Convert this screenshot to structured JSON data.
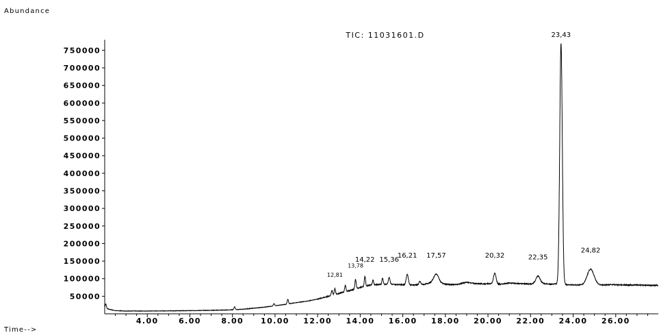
{
  "chart_data": {
    "type": "line",
    "title": "TIC: 11031601.D",
    "ylabel": "Abundance",
    "xlabel": "Time-->",
    "xlim": [
      2.0,
      28.0
    ],
    "ylim": [
      0,
      780000
    ],
    "x_ticks": [
      {
        "value": 4,
        "label": "4.00"
      },
      {
        "value": 6,
        "label": "6.00"
      },
      {
        "value": 8,
        "label": "8.00"
      },
      {
        "value": 10,
        "label": "10.00"
      },
      {
        "value": 12,
        "label": "12.00"
      },
      {
        "value": 14,
        "label": "14.00"
      },
      {
        "value": 16,
        "label": "16.00"
      },
      {
        "value": 18,
        "label": "18.00"
      },
      {
        "value": 20,
        "label": "20.00"
      },
      {
        "value": 22,
        "label": "22.00"
      },
      {
        "value": 24,
        "label": "24.00"
      },
      {
        "value": 26,
        "label": "26.00"
      }
    ],
    "y_ticks": [
      {
        "value": 50000,
        "label": "50000"
      },
      {
        "value": 100000,
        "label": "100000"
      },
      {
        "value": 150000,
        "label": "150000"
      },
      {
        "value": 200000,
        "label": "200000"
      },
      {
        "value": 250000,
        "label": "250000"
      },
      {
        "value": 300000,
        "label": "300000"
      },
      {
        "value": 350000,
        "label": "350000"
      },
      {
        "value": 400000,
        "label": "400000"
      },
      {
        "value": 450000,
        "label": "450000"
      },
      {
        "value": 500000,
        "label": "500000"
      },
      {
        "value": 550000,
        "label": "550000"
      },
      {
        "value": 600000,
        "label": "600000"
      },
      {
        "value": 650000,
        "label": "650000"
      },
      {
        "value": 700000,
        "label": "700000"
      },
      {
        "value": 750000,
        "label": "750000"
      }
    ],
    "baseline": [
      [
        2.05,
        16000
      ],
      [
        2.2,
        13000
      ],
      [
        2.5,
        9000
      ],
      [
        3.0,
        8000
      ],
      [
        4.0,
        8000
      ],
      [
        5.0,
        8500
      ],
      [
        6.0,
        9000
      ],
      [
        7.0,
        10000
      ],
      [
        7.8,
        11000
      ],
      [
        8.5,
        13000
      ],
      [
        9.0,
        16000
      ],
      [
        9.5,
        19000
      ],
      [
        10.0,
        23000
      ],
      [
        10.5,
        27000
      ],
      [
        11.0,
        32000
      ],
      [
        11.5,
        36000
      ],
      [
        12.0,
        42000
      ],
      [
        12.5,
        50000
      ],
      [
        13.0,
        58000
      ],
      [
        13.5,
        66000
      ],
      [
        14.0,
        75000
      ],
      [
        14.5,
        82000
      ],
      [
        15.0,
        84000
      ],
      [
        15.5,
        84000
      ],
      [
        16.0,
        83000
      ],
      [
        16.5,
        82000
      ],
      [
        17.0,
        84000
      ],
      [
        17.3,
        88000
      ],
      [
        17.8,
        86000
      ],
      [
        18.2,
        83000
      ],
      [
        18.6,
        84000
      ],
      [
        19.0,
        90000
      ],
      [
        19.4,
        86000
      ],
      [
        19.8,
        85000
      ],
      [
        20.2,
        86000
      ],
      [
        20.6,
        84000
      ],
      [
        21.0,
        88000
      ],
      [
        21.5,
        86000
      ],
      [
        22.0,
        85000
      ],
      [
        22.6,
        86000
      ],
      [
        23.0,
        84000
      ],
      [
        23.2,
        85000
      ],
      [
        23.7,
        83000
      ],
      [
        24.2,
        82000
      ],
      [
        25.2,
        82000
      ],
      [
        25.8,
        83000
      ],
      [
        26.5,
        82000
      ],
      [
        27.0,
        82000
      ],
      [
        27.5,
        81000
      ],
      [
        28.0,
        81000
      ]
    ],
    "peaks": [
      {
        "rt": 2.05,
        "height": 12000,
        "width": 0.03
      },
      {
        "rt": 8.1,
        "height": 8000,
        "width": 0.03
      },
      {
        "rt": 9.95,
        "height": 6000,
        "width": 0.03
      },
      {
        "rt": 10.6,
        "height": 13000,
        "width": 0.03
      },
      {
        "rt": 12.67,
        "height": 14000,
        "width": 0.03
      },
      {
        "rt": 12.81,
        "height": 17000,
        "width": 0.03
      },
      {
        "rt": 13.3,
        "height": 18000,
        "width": 0.03
      },
      {
        "rt": 13.78,
        "height": 27000,
        "width": 0.03
      },
      {
        "rt": 14.22,
        "height": 28000,
        "width": 0.03
      },
      {
        "rt": 14.6,
        "height": 14000,
        "width": 0.03
      },
      {
        "rt": 15.05,
        "height": 18000,
        "width": 0.03
      },
      {
        "rt": 15.36,
        "height": 20000,
        "width": 0.04
      },
      {
        "rt": 16.21,
        "height": 30000,
        "width": 0.05
      },
      {
        "rt": 16.8,
        "height": 9000,
        "width": 0.04
      },
      {
        "rt": 17.57,
        "height": 26000,
        "width": 0.12
      },
      {
        "rt": 20.32,
        "height": 30000,
        "width": 0.06
      },
      {
        "rt": 22.35,
        "height": 22000,
        "width": 0.1
      },
      {
        "rt": 23.43,
        "height": 685000,
        "width": 0.06
      },
      {
        "rt": 24.82,
        "height": 45000,
        "width": 0.16
      }
    ],
    "peak_labels": [
      {
        "rt": 12.81,
        "label": "12,81",
        "y": 105000
      },
      {
        "rt": 13.78,
        "label": "13,78",
        "y": 132000
      },
      {
        "rt": 14.22,
        "label": "14,22",
        "y": 148000
      },
      {
        "rt": 15.36,
        "label": "15,36",
        "y": 148000
      },
      {
        "rt": 16.21,
        "label": "16,21",
        "y": 160000
      },
      {
        "rt": 17.57,
        "label": "17,57",
        "y": 160000
      },
      {
        "rt": 20.32,
        "label": "20,32",
        "y": 160000
      },
      {
        "rt": 22.35,
        "label": "22,35",
        "y": 155000
      },
      {
        "rt": 23.43,
        "label": "23,43",
        "y": 788000
      },
      {
        "rt": 24.82,
        "label": "24,82",
        "y": 175000
      }
    ],
    "line_color": "#000000",
    "grid": false
  }
}
